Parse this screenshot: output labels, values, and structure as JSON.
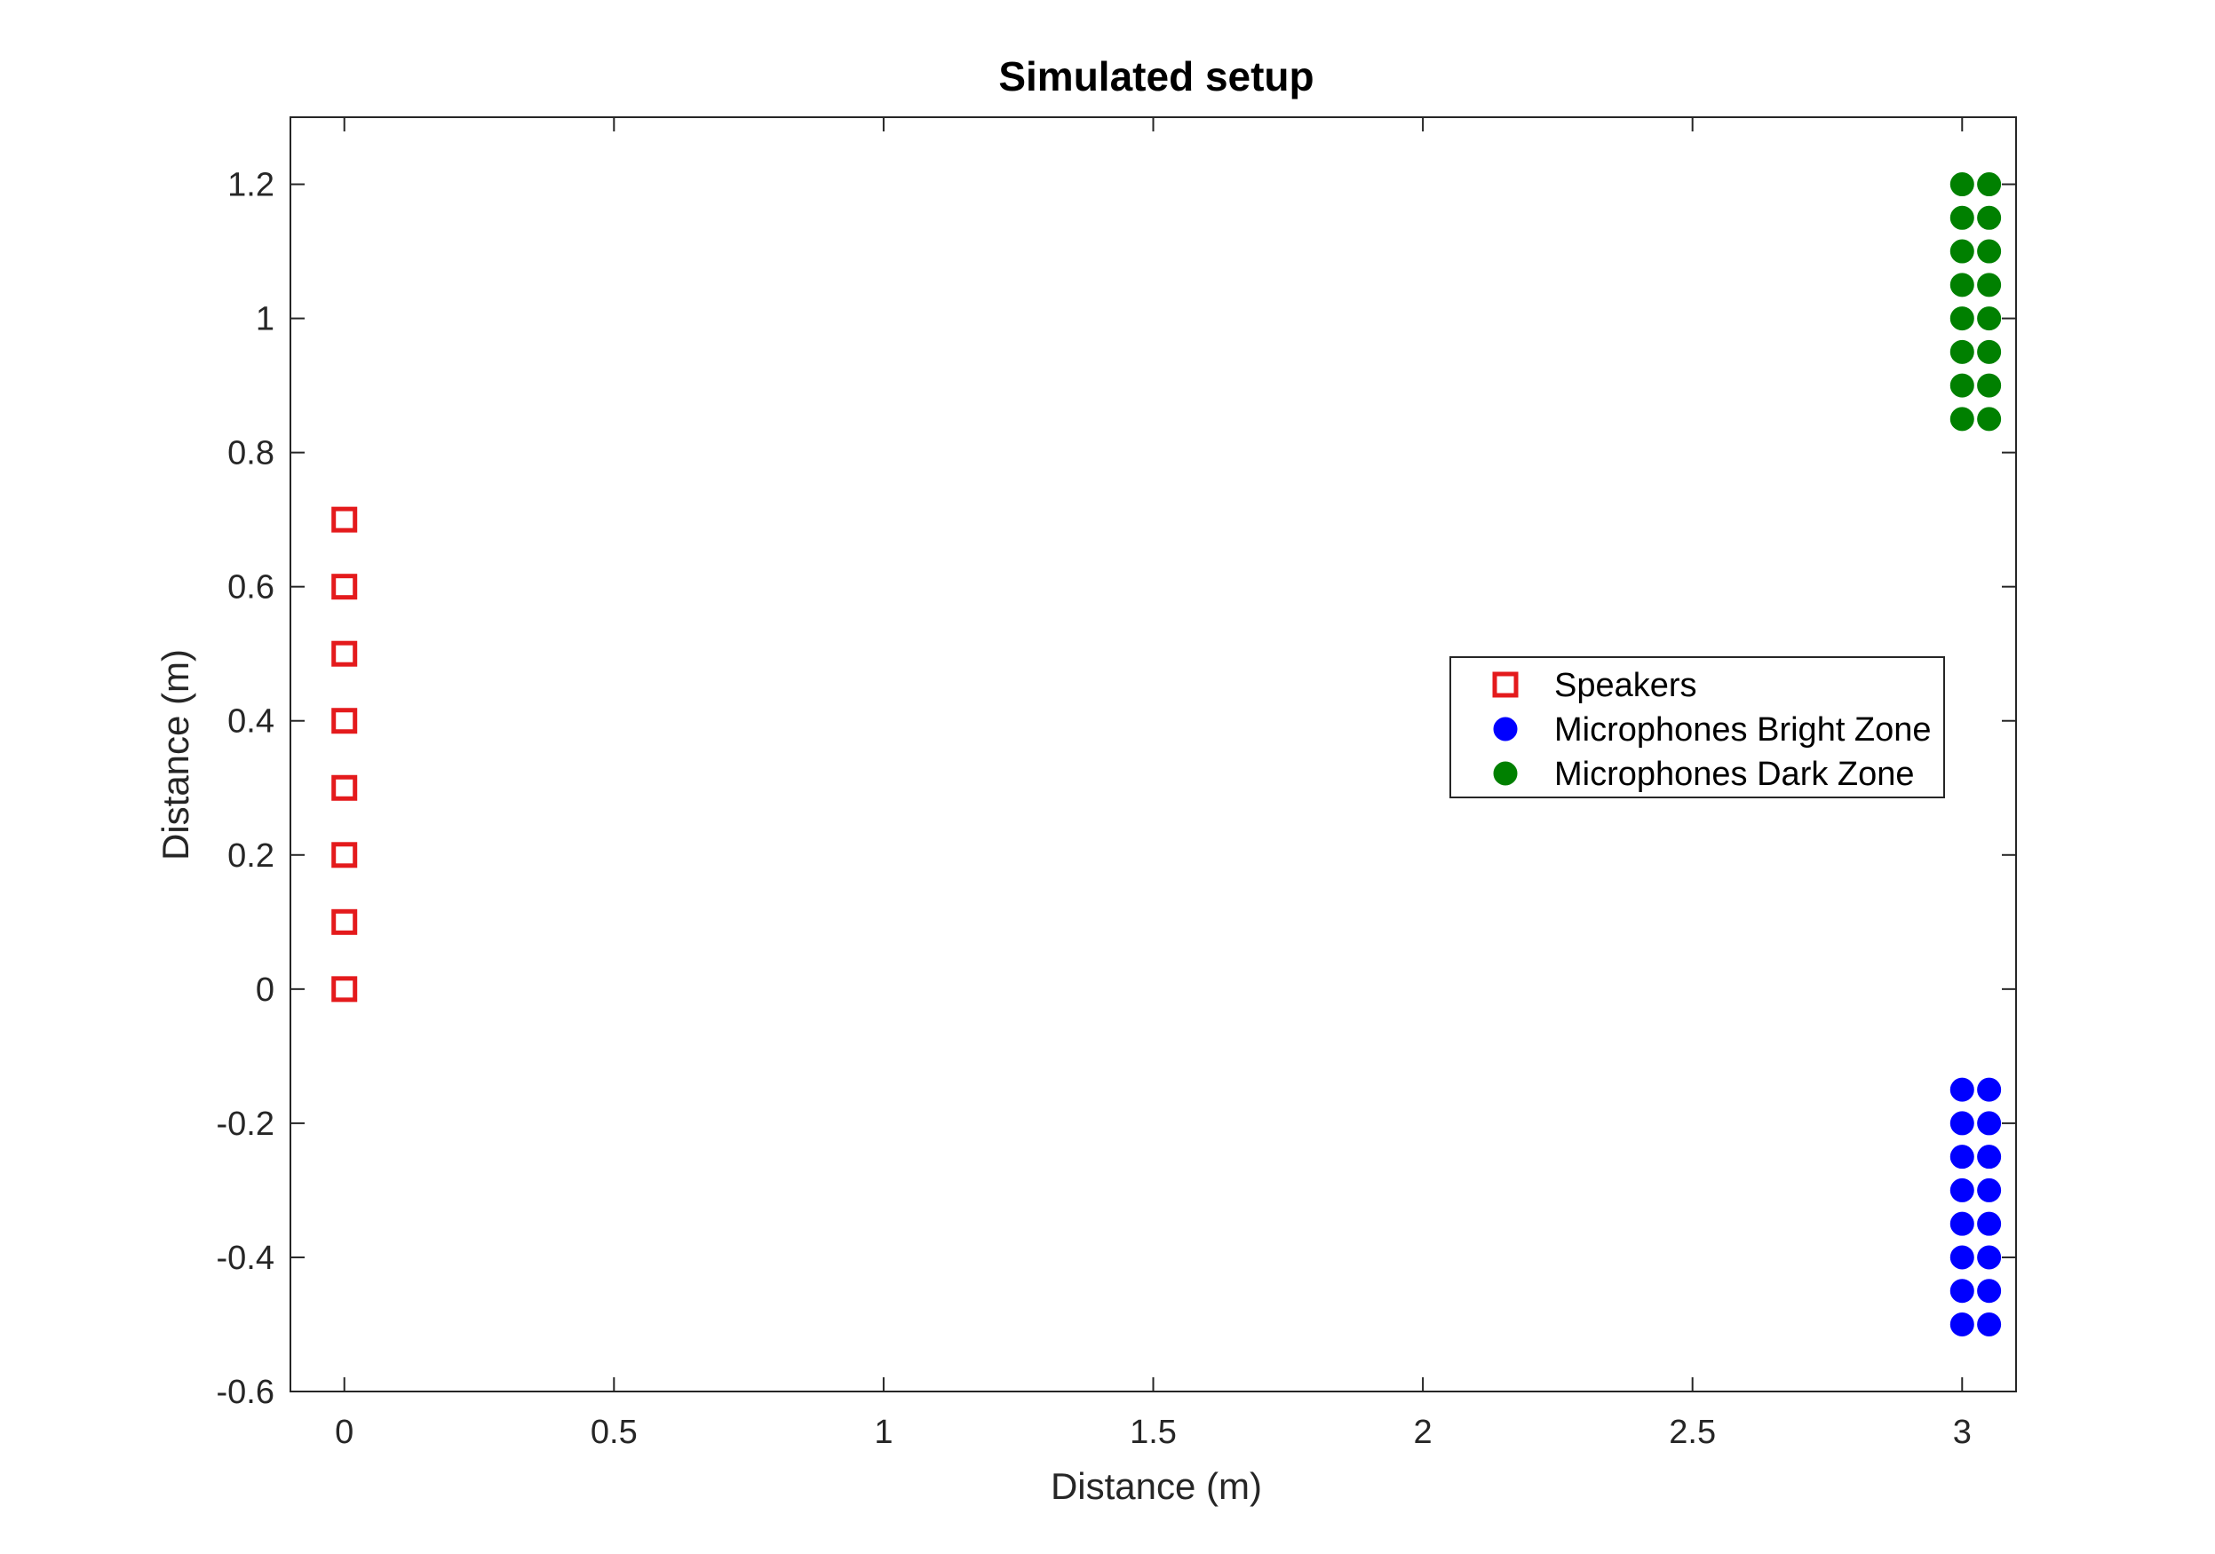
{
  "chart_data": {
    "type": "scatter",
    "title": "Simulated setup",
    "xlabel": "Distance (m)",
    "ylabel": "Distance (m)",
    "xlim": [
      -0.1,
      3.1
    ],
    "ylim": [
      -0.6,
      1.3
    ],
    "xticks": [
      0,
      0.5,
      1,
      1.5,
      2,
      2.5,
      3
    ],
    "xtick_labels": [
      "0",
      "0.5",
      "1",
      "1.5",
      "2",
      "2.5",
      "3"
    ],
    "yticks": [
      -0.6,
      -0.4,
      -0.2,
      0,
      0.2,
      0.4,
      0.6,
      0.8,
      1,
      1.2
    ],
    "ytick_labels": [
      "-0.6",
      "-0.4",
      "-0.2",
      "0",
      "0.2",
      "0.4",
      "0.6",
      "0.8",
      "1",
      "1.2"
    ],
    "grid": false,
    "legend_position": "center-right",
    "series": [
      {
        "name": "Speakers",
        "marker": "square",
        "color": "#e41a1c",
        "x": [
          0,
          0,
          0,
          0,
          0,
          0,
          0,
          0
        ],
        "y": [
          0,
          0.1,
          0.2,
          0.3,
          0.4,
          0.5,
          0.6,
          0.7
        ]
      },
      {
        "name": "Microphones Bright Zone",
        "marker": "circle",
        "color": "#0000ff",
        "x": [
          3,
          3.05,
          3,
          3.05,
          3,
          3.05,
          3,
          3.05,
          3,
          3.05,
          3,
          3.05,
          3,
          3.05,
          3,
          3.05
        ],
        "y": [
          -0.5,
          -0.5,
          -0.45,
          -0.45,
          -0.4,
          -0.4,
          -0.35,
          -0.35,
          -0.3,
          -0.3,
          -0.25,
          -0.25,
          -0.2,
          -0.2,
          -0.15,
          -0.15
        ]
      },
      {
        "name": "Microphones Dark Zone",
        "marker": "circle",
        "color": "#008000",
        "x": [
          3,
          3.05,
          3,
          3.05,
          3,
          3.05,
          3,
          3.05,
          3,
          3.05,
          3,
          3.05,
          3,
          3.05,
          3,
          3.05
        ],
        "y": [
          0.85,
          0.85,
          0.9,
          0.9,
          0.95,
          0.95,
          1,
          1,
          1.05,
          1.05,
          1.1,
          1.1,
          1.15,
          1.15,
          1.2,
          1.2
        ]
      }
    ]
  }
}
